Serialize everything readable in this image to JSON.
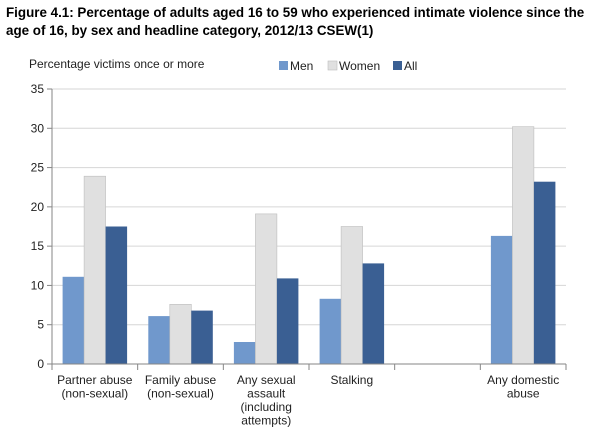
{
  "title": "Figure 4.1: Percentage of adults aged 16 to 59 who experienced intimate violence since the age of 16, by sex and headline category, 2012/13 CSEW(1)",
  "colors": {
    "Men": "#7098cc",
    "Women": "#e0e0e0",
    "All": "#3a5f93",
    "axis": "#868686",
    "grid": "#d6d6d6"
  },
  "chart_data": {
    "type": "bar",
    "title": "Figure 4.1: Percentage of adults aged 16 to 59 who experienced intimate violence since the age of 16, by sex and headline category, 2012/13 CSEW(1)",
    "ylabel": "Percentage victims once or more",
    "xlabel": "",
    "ylim": [
      0,
      35
    ],
    "yticks": [
      0,
      5,
      10,
      15,
      20,
      25,
      30,
      35
    ],
    "grid": true,
    "legend": "top-right",
    "categories": [
      [
        "Partner abuse",
        "(non-sexual)"
      ],
      [
        "Family abuse",
        "(non-sexual)"
      ],
      [
        "Any sexual",
        "assault",
        "(including",
        "attempts)"
      ],
      [
        "Stalking"
      ],
      [],
      [
        "Any domestic",
        "abuse"
      ]
    ],
    "series": [
      {
        "name": "Men",
        "values": [
          11.1,
          6.1,
          2.8,
          8.3,
          null,
          16.3
        ]
      },
      {
        "name": "Women",
        "values": [
          23.9,
          7.6,
          19.1,
          17.5,
          null,
          30.2
        ]
      },
      {
        "name": "All",
        "values": [
          17.5,
          6.8,
          10.9,
          12.8,
          null,
          23.2
        ]
      }
    ]
  }
}
